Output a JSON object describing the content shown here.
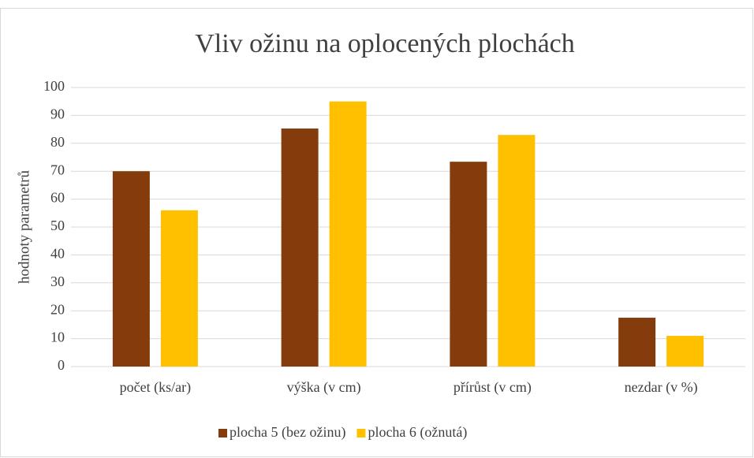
{
  "chart_data": {
    "type": "bar",
    "title": "Vliv ožinu na oplocených plochách",
    "y_label": "hodnoty parametrů",
    "categories": [
      "počet (ks/ar)",
      "výška (v cm)",
      "přírůst (v cm)",
      "nezdar (v %)"
    ],
    "series": [
      {
        "name": "plocha 5 (bez ožinu)",
        "color": "#843c0c",
        "values": [
          70,
          85.3,
          73.4,
          17.5
        ]
      },
      {
        "name": "plocha 6 (ožnutá)",
        "color": "#ffc000",
        "values": [
          56,
          95,
          83,
          11
        ]
      }
    ],
    "ylim": [
      0,
      100
    ],
    "yticks": [
      0,
      10,
      20,
      30,
      40,
      50,
      60,
      70,
      80,
      90,
      100
    ],
    "grid": true,
    "legend": "bottom"
  }
}
